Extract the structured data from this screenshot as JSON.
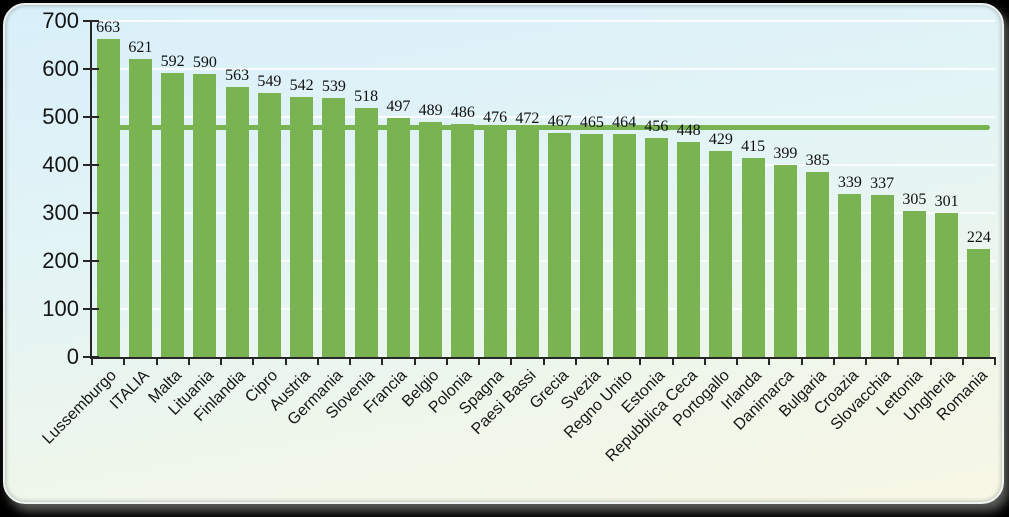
{
  "chart_data": {
    "type": "bar",
    "title": "",
    "xlabel": "",
    "ylabel": "",
    "categories": [
      "Lussemburgo",
      "ITALIA",
      "Malta",
      "Lituania",
      "Finlandia",
      "Cipro",
      "Austria",
      "Germania",
      "Slovenia",
      "Francia",
      "Belgio",
      "Polonia",
      "Spagna",
      "Paesi Bassi",
      "Grecia",
      "Svezia",
      "Regno Unito",
      "Estonia",
      "Repubblica Ceca",
      "Portogallo",
      "Irlanda",
      "Danimarca",
      "Bulgaria",
      "Croazia",
      "Slovacchia",
      "Lettonia",
      "Ungheria",
      "Romania"
    ],
    "values": [
      663,
      621,
      592,
      590,
      563,
      549,
      542,
      539,
      518,
      497,
      489,
      486,
      476,
      472,
      467,
      465,
      464,
      456,
      448,
      429,
      415,
      399,
      385,
      339,
      337,
      305,
      301,
      224
    ],
    "ylim": [
      0,
      700
    ],
    "yticks": [
      0,
      100,
      200,
      300,
      400,
      500,
      600,
      700
    ],
    "grid": "horizontal",
    "legend": "none",
    "bar_color": "#7ab351",
    "grid_color": "#ffffff",
    "axis_color": "#262626",
    "reference_line": {
      "value": 478,
      "color": "#7ab351"
    },
    "panel_background_top": "#d9effa",
    "panel_background_bottom": "#f7f7e4"
  }
}
